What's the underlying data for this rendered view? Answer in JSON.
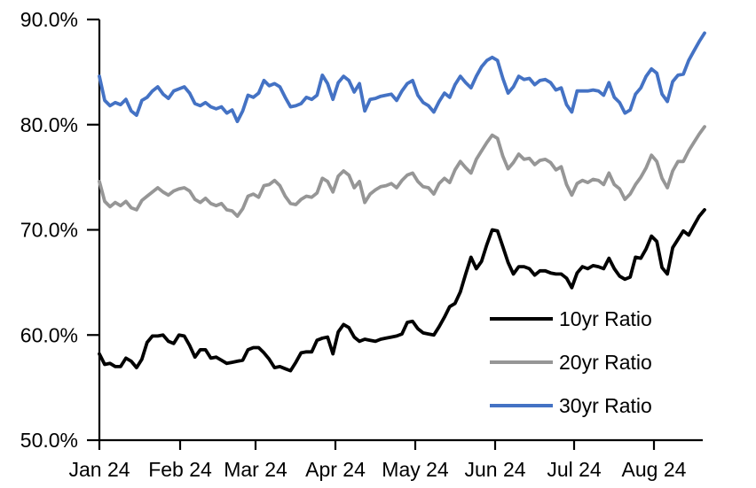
{
  "background": "#ffffff",
  "chart_data": {
    "type": "line",
    "title": "",
    "xlabel": "",
    "ylabel": "",
    "grid": false,
    "x_axis": {
      "tick_labels": [
        "Jan 24",
        "Feb 24",
        "Mar 24",
        "Apr 24",
        "May 24",
        "Jun 24",
        "Jul 24",
        "Aug 24"
      ],
      "range_note": "daily values from Jan 2024 to late Aug 2024"
    },
    "y_axis": {
      "tick_labels": [
        "90.0%",
        "80.0%",
        "70.0%",
        "60.0%",
        "50.0%"
      ],
      "tick_values": [
        90,
        80,
        70,
        60,
        50
      ],
      "min": 50,
      "max": 90,
      "unit": "percent"
    },
    "legend": {
      "position": "inside-lower-right",
      "entries": [
        "10yr Ratio",
        "20yr Ratio",
        "30yr Ratio"
      ]
    },
    "series": [
      {
        "name": "10yr Ratio",
        "color": "#000000",
        "values": [
          58.2,
          57.2,
          57.3,
          57.0,
          57.0,
          57.8,
          57.5,
          56.9,
          57.7,
          59.3,
          59.9,
          59.9,
          60.0,
          59.4,
          59.2,
          60.0,
          59.9,
          59.0,
          57.9,
          58.6,
          58.6,
          57.8,
          57.9,
          57.6,
          57.3,
          57.4,
          57.5,
          57.6,
          58.6,
          58.8,
          58.8,
          58.3,
          57.7,
          56.9,
          57.0,
          56.8,
          56.6,
          57.4,
          58.3,
          58.4,
          58.4,
          59.5,
          59.7,
          59.8,
          58.2,
          60.3,
          61.0,
          60.7,
          59.8,
          59.4,
          59.6,
          59.5,
          59.4,
          59.6,
          59.7,
          59.8,
          59.9,
          60.1,
          61.2,
          61.3,
          60.6,
          60.2,
          60.1,
          60.0,
          60.8,
          61.7,
          62.7,
          63.0,
          64.1,
          65.8,
          67.4,
          66.3,
          67.0,
          68.6,
          70.0,
          69.9,
          68.4,
          66.9,
          65.8,
          66.5,
          66.5,
          66.3,
          65.7,
          66.1,
          66.1,
          65.9,
          65.8,
          65.8,
          65.4,
          64.5,
          65.9,
          66.5,
          66.3,
          66.6,
          66.5,
          66.3,
          67.3,
          66.3,
          65.6,
          65.3,
          65.5,
          67.4,
          67.3,
          68.2,
          69.4,
          68.9,
          66.4,
          65.8,
          68.3,
          69.1,
          69.9,
          69.5,
          70.4,
          71.3,
          71.9
        ]
      },
      {
        "name": "20yr Ratio",
        "color": "#969696",
        "values": [
          74.6,
          72.7,
          72.2,
          72.6,
          72.3,
          72.7,
          72.1,
          71.9,
          72.8,
          73.2,
          73.6,
          74.0,
          73.6,
          73.3,
          73.7,
          73.9,
          74.0,
          73.7,
          72.9,
          72.6,
          73.0,
          72.5,
          72.3,
          72.5,
          71.9,
          71.8,
          71.3,
          72.0,
          73.2,
          73.4,
          73.1,
          74.2,
          74.3,
          74.7,
          74.2,
          73.2,
          72.5,
          72.4,
          72.9,
          73.2,
          73.1,
          73.5,
          74.9,
          74.6,
          73.6,
          75.1,
          75.6,
          75.2,
          74.0,
          74.6,
          72.6,
          73.4,
          73.8,
          74.1,
          74.2,
          74.4,
          74.0,
          74.7,
          75.2,
          75.4,
          74.6,
          74.1,
          74.0,
          73.4,
          74.4,
          74.9,
          74.5,
          75.7,
          76.5,
          75.9,
          75.4,
          76.7,
          77.5,
          78.3,
          79.0,
          78.7,
          77.0,
          75.8,
          76.4,
          77.2,
          76.7,
          76.8,
          76.2,
          76.6,
          76.7,
          76.4,
          75.7,
          76.0,
          74.3,
          73.3,
          74.4,
          74.7,
          74.5,
          74.8,
          74.7,
          74.3,
          75.4,
          74.3,
          73.9,
          72.9,
          73.4,
          74.3,
          75.0,
          75.9,
          77.1,
          76.5,
          74.9,
          74.0,
          75.6,
          76.5,
          76.5,
          77.5,
          78.3,
          79.1,
          79.8
        ]
      },
      {
        "name": "30yr Ratio",
        "color": "#4472c4",
        "values": [
          84.6,
          82.3,
          81.8,
          82.1,
          81.9,
          82.4,
          81.3,
          80.9,
          82.3,
          82.6,
          83.2,
          83.6,
          82.9,
          82.5,
          83.2,
          83.4,
          83.6,
          83.0,
          82.0,
          81.8,
          82.1,
          81.7,
          81.5,
          81.7,
          81.1,
          81.4,
          80.3,
          81.3,
          82.8,
          82.6,
          83.0,
          84.2,
          83.7,
          83.9,
          83.6,
          82.6,
          81.7,
          81.8,
          82.0,
          82.6,
          82.4,
          82.8,
          84.7,
          83.9,
          82.4,
          84.0,
          84.6,
          84.2,
          83.1,
          83.9,
          81.3,
          82.4,
          82.5,
          82.7,
          82.8,
          82.9,
          82.3,
          83.2,
          83.9,
          84.2,
          82.8,
          82.1,
          81.8,
          81.2,
          82.2,
          83.0,
          82.6,
          83.8,
          84.6,
          84.0,
          83.5,
          84.6,
          85.5,
          86.1,
          86.4,
          86.1,
          84.4,
          83.0,
          83.6,
          84.6,
          84.3,
          84.4,
          83.8,
          84.2,
          84.3,
          84.0,
          83.3,
          83.5,
          81.9,
          81.2,
          83.2,
          83.2,
          83.2,
          83.3,
          83.2,
          82.8,
          84.0,
          82.6,
          82.1,
          81.1,
          81.4,
          82.9,
          83.5,
          84.6,
          85.3,
          84.9,
          82.9,
          82.2,
          84.1,
          84.7,
          84.8,
          86.1,
          87.0,
          87.9,
          88.7
        ]
      }
    ]
  }
}
